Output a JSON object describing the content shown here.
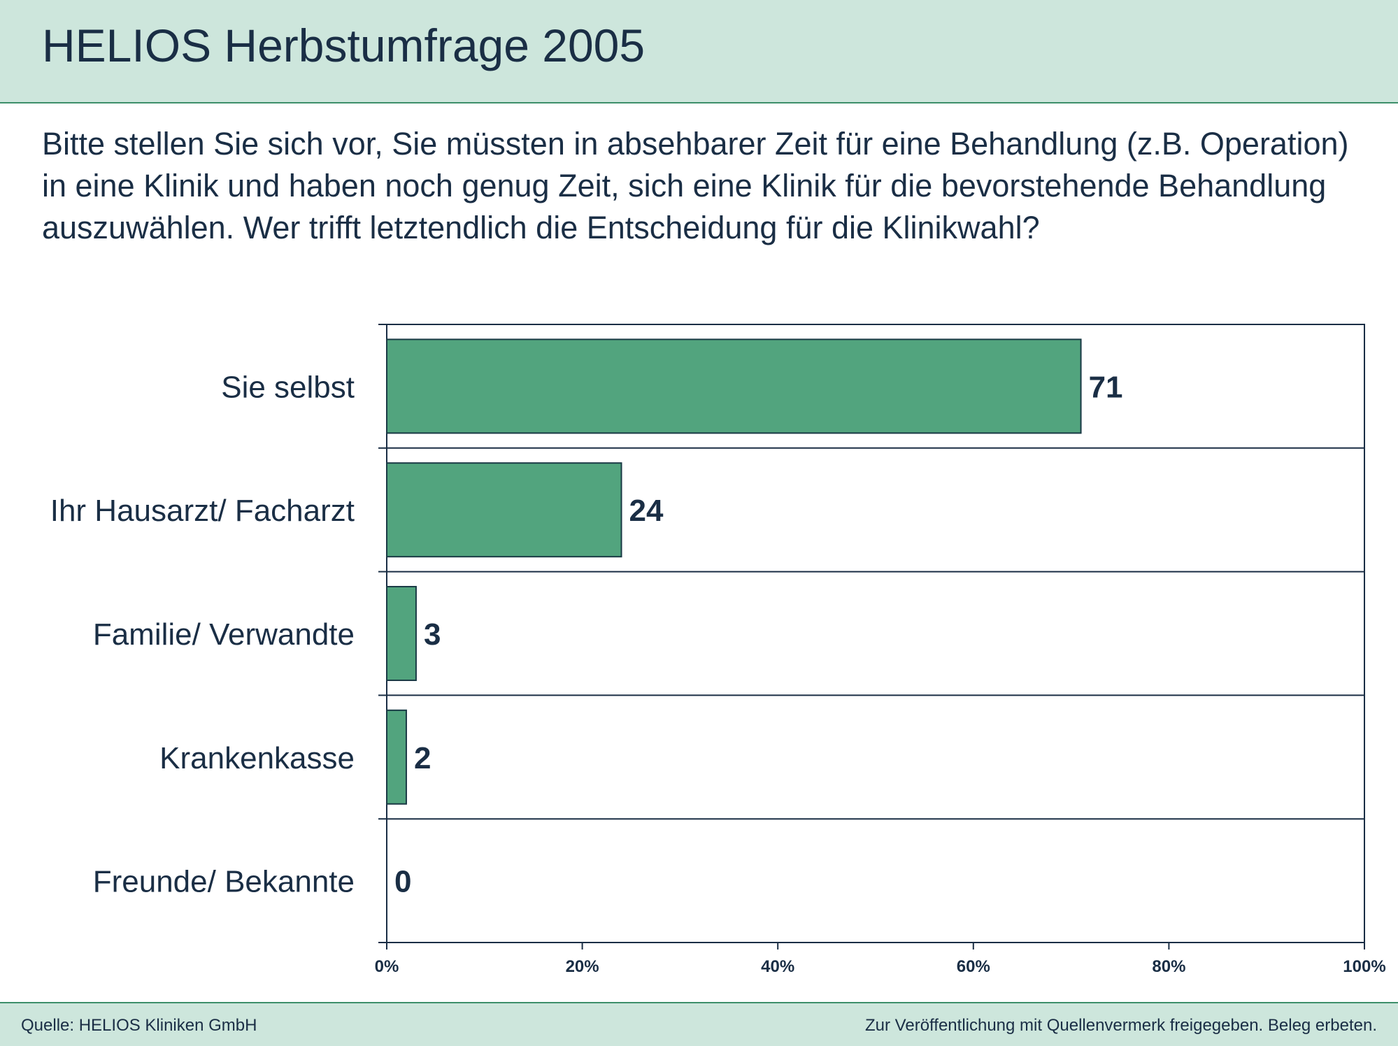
{
  "header": {
    "title": "HELIOS Herbstumfrage 2005"
  },
  "question": "Bitte stellen Sie sich vor, Sie müssten in absehbarer Zeit für eine Behandlung (z.B. Operation) in eine Klinik und haben noch genug Zeit, sich eine Klinik für die bevorstehende Behandlung auszuwählen. Wer trifft letztendlich die Entscheidung für die Klinikwahl?",
  "chart_data": {
    "type": "bar",
    "orientation": "horizontal",
    "title": "",
    "xlabel": "",
    "ylabel": "",
    "categories": [
      "Sie selbst",
      "Ihr Hausarzt/ Facharzt",
      "Familie/ Verwandte",
      "Krankenkasse",
      "Freunde/ Bekannte"
    ],
    "values": [
      71,
      24,
      3,
      2,
      0
    ],
    "value_labels": [
      "71",
      "24",
      "3",
      "2",
      "0"
    ],
    "xlim": [
      0,
      100
    ],
    "x_ticks": [
      0,
      20,
      40,
      60,
      80,
      100
    ],
    "x_tick_labels": [
      "0%",
      "20%",
      "40%",
      "60%",
      "80%",
      "100%"
    ],
    "grid": false,
    "colors": {
      "bar": "#52a47e",
      "bar_stroke": "#1a3a45",
      "text": "#1a2e45"
    }
  },
  "footer": {
    "source": "Quelle: HELIOS Kliniken GmbH",
    "note": "Zur Veröffentlichung mit Quellenvermerk freigegeben. Beleg erbeten."
  }
}
